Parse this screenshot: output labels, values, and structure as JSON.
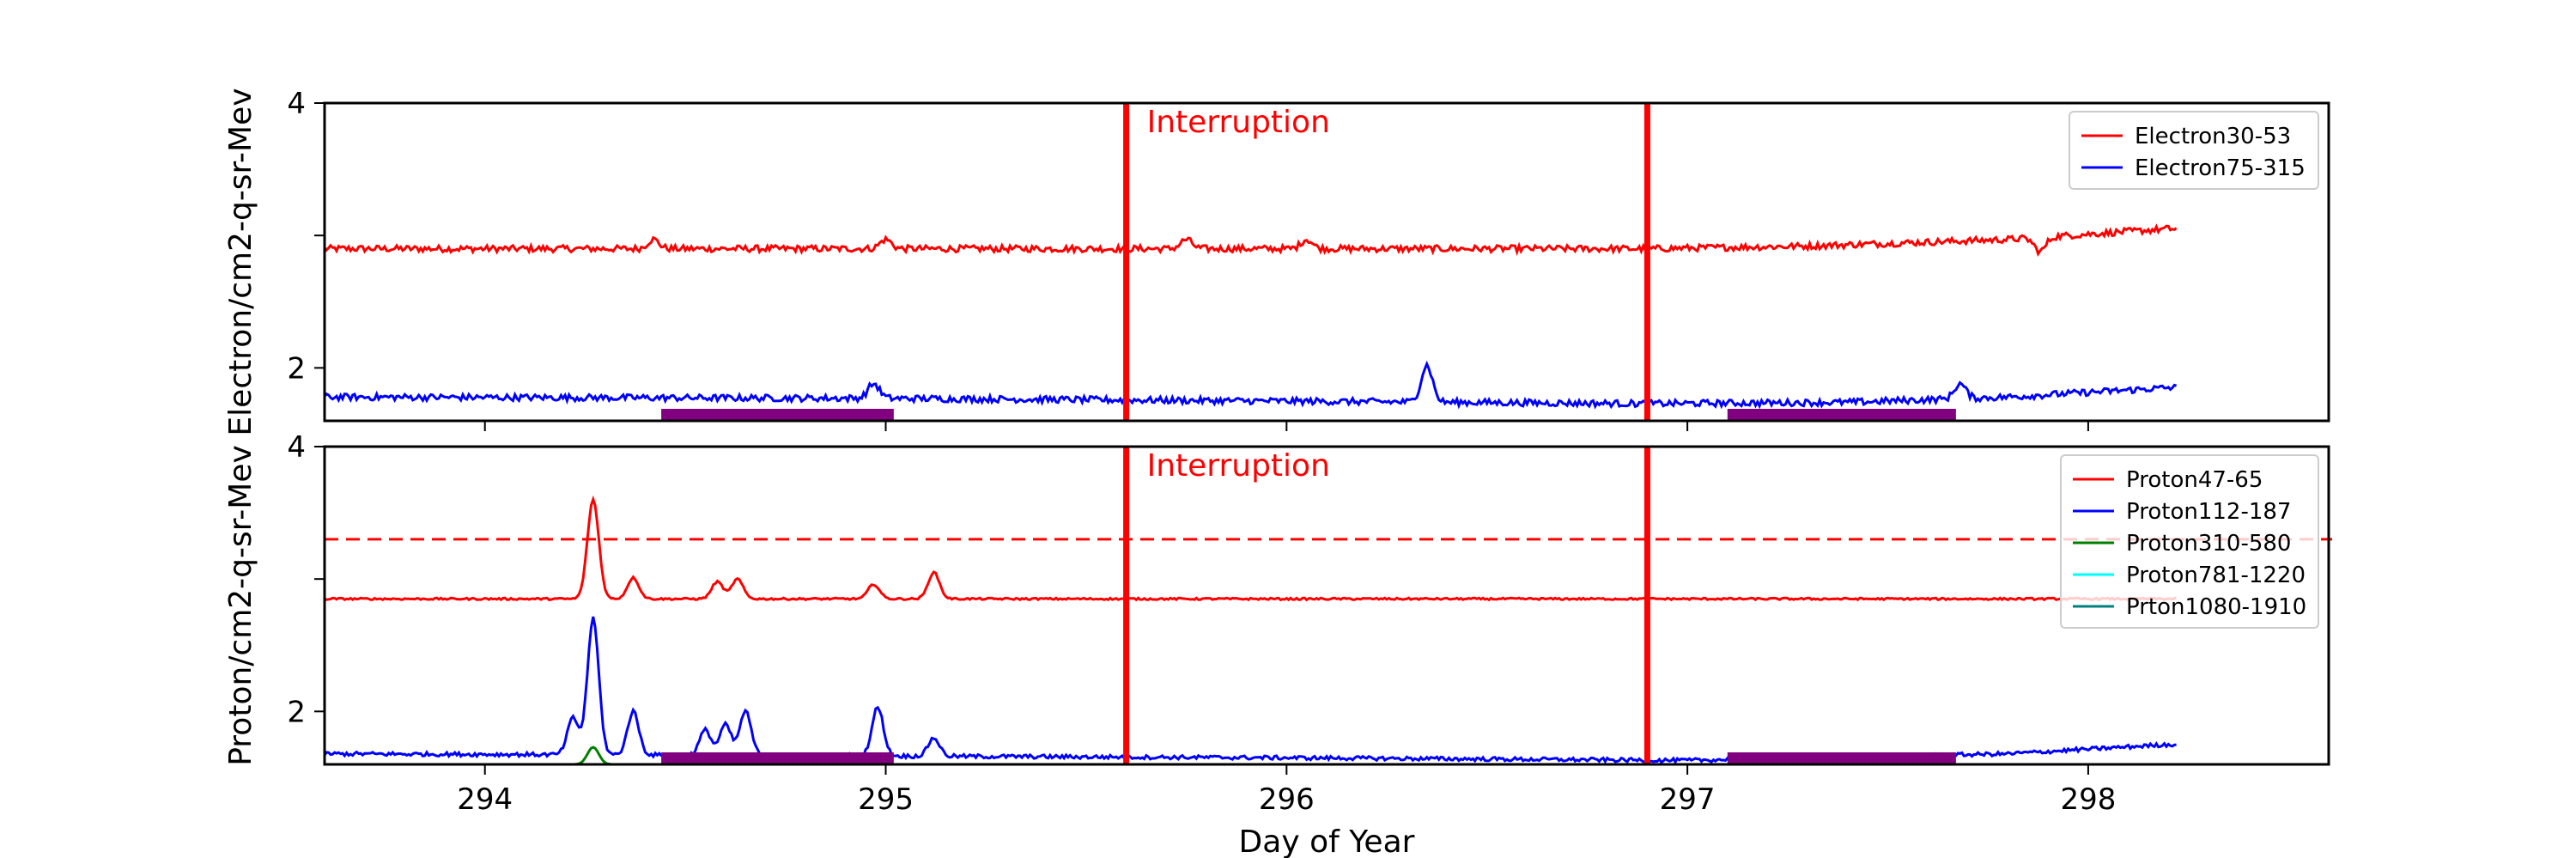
{
  "chart_data": [
    {
      "type": "line",
      "ylabel": "Electron/cm2-q-sr-Mev",
      "ylim": [
        1.6,
        4.0
      ],
      "xlim": [
        293.6,
        298.6
      ],
      "yticks": [
        2,
        3,
        4
      ],
      "ytick_labels": [
        "2",
        "",
        "4"
      ],
      "legend": "top-right",
      "annotation": "Interruption",
      "series": [
        {
          "name": "Electron30-53",
          "color": "#ff0000",
          "base": 2.9,
          "noise": 0.025,
          "trend": [
            [
              293.6,
              2.9
            ],
            [
              296.9,
              2.9
            ],
            [
              297.3,
              2.92
            ],
            [
              297.8,
              2.97
            ],
            [
              298.2,
              3.05
            ]
          ],
          "spikes": [
            [
              294.42,
              2.97
            ],
            [
              295.0,
              2.97
            ],
            [
              295.75,
              2.97
            ],
            [
              296.05,
              2.97
            ],
            [
              297.88,
              2.88
            ]
          ]
        },
        {
          "name": "Electron75-315",
          "color": "#0000ff",
          "base": 1.78,
          "noise": 0.025,
          "trend": [
            [
              293.6,
              1.78
            ],
            [
              295.0,
              1.77
            ],
            [
              296.9,
              1.73
            ],
            [
              297.4,
              1.74
            ],
            [
              297.8,
              1.78
            ],
            [
              298.2,
              1.85
            ]
          ],
          "spikes": [
            [
              294.97,
              1.88
            ],
            [
              296.35,
              2.02
            ],
            [
              297.68,
              1.88
            ]
          ]
        }
      ],
      "interruptions_x": [
        295.6,
        296.9
      ],
      "gaps": [
        [
          294.44,
          295.02
        ],
        [
          297.1,
          297.67
        ]
      ]
    },
    {
      "type": "line",
      "ylabel": "Proton/cm2-q-sr-Mev",
      "xlabel": "Day of Year",
      "ylim": [
        1.6,
        4.0
      ],
      "xlim": [
        293.6,
        298.6
      ],
      "xticks": [
        294,
        295,
        296,
        297,
        298
      ],
      "xtick_labels": [
        "294",
        "295",
        "296",
        "297",
        "298"
      ],
      "yticks": [
        2,
        3,
        4
      ],
      "ytick_labels": [
        "2",
        "",
        "4"
      ],
      "legend": "top-right",
      "annotation": "Interruption",
      "threshold": 3.3,
      "series": [
        {
          "name": "Proton47-65",
          "color": "#ff0000",
          "base": 2.85,
          "noise": 0.007,
          "trend": [
            [
              293.6,
              2.85
            ],
            [
              298.2,
              2.85
            ]
          ],
          "spikes": [
            [
              294.27,
              3.6
            ],
            [
              294.37,
              3.01
            ],
            [
              294.58,
              2.98
            ],
            [
              294.63,
              3.0
            ],
            [
              294.97,
              2.96
            ],
            [
              295.12,
              3.05
            ]
          ]
        },
        {
          "name": "Proton112-187",
          "color": "#0000ff",
          "base": 1.68,
          "noise": 0.015,
          "trend": [
            [
              293.6,
              1.68
            ],
            [
              294.5,
              1.67
            ],
            [
              296.0,
              1.65
            ],
            [
              297.0,
              1.63
            ],
            [
              297.8,
              1.68
            ],
            [
              298.2,
              1.75
            ]
          ],
          "spikes": [
            [
              294.22,
              1.95
            ],
            [
              294.27,
              2.7
            ],
            [
              294.37,
              2.0
            ],
            [
              294.55,
              1.86
            ],
            [
              294.6,
              1.9
            ],
            [
              294.65,
              2.0
            ],
            [
              294.98,
              2.03
            ],
            [
              295.12,
              1.8
            ]
          ]
        },
        {
          "name": "Proton310-580",
          "color": "#008000",
          "base": 1.6,
          "noise": 0.0,
          "trend": [
            [
              293.6,
              1.6
            ],
            [
              298.2,
              1.6
            ]
          ],
          "spikes": [
            [
              294.27,
              1.73
            ]
          ]
        },
        {
          "name": "Proton781-1220",
          "color": "#00ffff",
          "base": 1.6,
          "noise": 0.0,
          "trend": [
            [
              293.6,
              1.6
            ],
            [
              298.2,
              1.6
            ]
          ],
          "spikes": []
        },
        {
          "name": "Prton1080-1910",
          "color": "#008080",
          "base": 1.6,
          "noise": 0.0,
          "trend": [
            [
              293.6,
              1.6
            ],
            [
              298.2,
              1.6
            ]
          ],
          "spikes": []
        }
      ],
      "interruptions_x": [
        295.6,
        296.9
      ],
      "gaps": [
        [
          294.44,
          295.02
        ],
        [
          297.1,
          297.67
        ]
      ]
    }
  ],
  "colors": {
    "interruption": "#ff0000",
    "gap": "#800080",
    "axis": "#000000"
  }
}
